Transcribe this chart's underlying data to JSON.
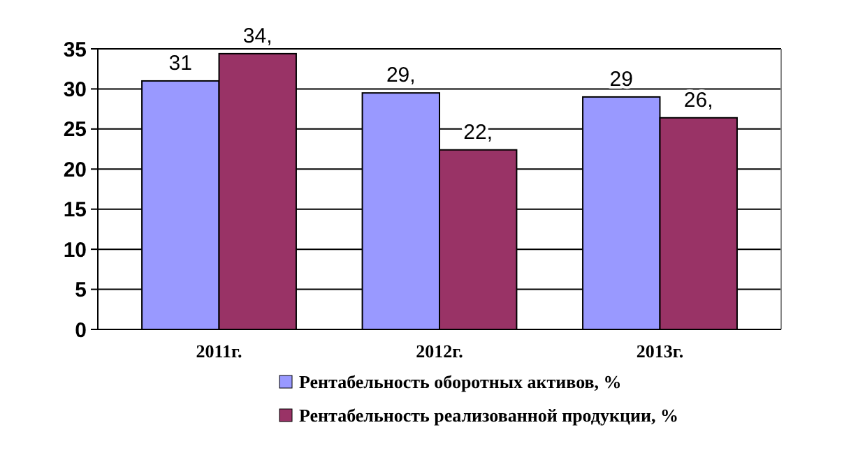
{
  "chart_data": {
    "type": "bar",
    "categories": [
      "2011г.",
      "2012г.",
      "2013г."
    ],
    "series": [
      {
        "name": "Рентабельность оборотных активов, %",
        "color": "#9999ff",
        "values": [
          31,
          29.5,
          29
        ],
        "value_labels": [
          "31",
          "29,",
          "29"
        ]
      },
      {
        "name": "Рентабельность реализованной продукции, %",
        "color": "#993366",
        "values": [
          34.4,
          22.4,
          26.4
        ],
        "value_labels": [
          "34,",
          "22,",
          "26,"
        ]
      }
    ],
    "ylim": [
      0,
      35
    ],
    "yticks": [
      0,
      5,
      10,
      15,
      20,
      25,
      30,
      35
    ],
    "grid": "y",
    "legend": "bottom"
  }
}
